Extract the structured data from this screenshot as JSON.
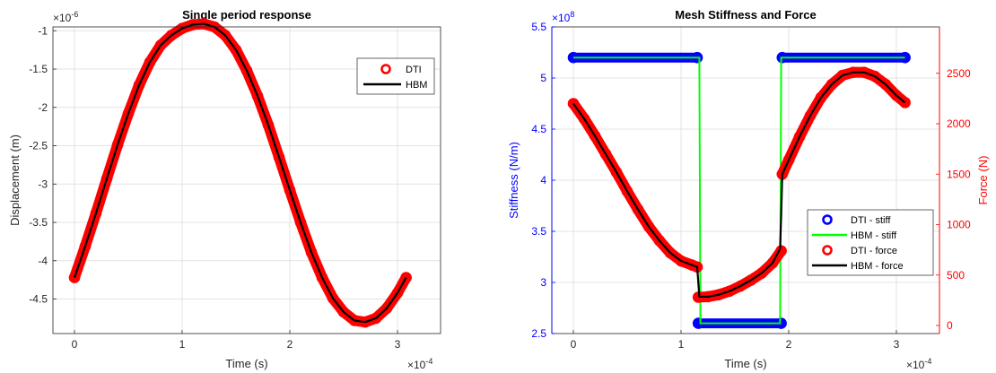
{
  "chart_data": [
    {
      "type": "line",
      "title": "Single period response",
      "xlabel": "Time (s)",
      "ylabel": "Displacement (m)",
      "x_multiplier": "×10",
      "x_multiplier_exp": "-4",
      "y_multiplier": "×10",
      "y_multiplier_exp": "-6",
      "xlim": [
        -0.2,
        3.4
      ],
      "ylim": [
        -4.95,
        -0.95
      ],
      "xticks": [
        0,
        1,
        2,
        3
      ],
      "xtick_labels": [
        "0",
        "1",
        "2",
        "3"
      ],
      "yticks": [
        -1,
        -1.5,
        -2,
        -2.5,
        -3,
        -3.5,
        -4,
        -4.5
      ],
      "ytick_labels": [
        "-1",
        "-1.5",
        "-2",
        "-2.5",
        "-3",
        "-3.5",
        "-4",
        "-4.5"
      ],
      "grid": true,
      "legend_position": "top-right",
      "series": [
        {
          "name": "DTI",
          "style": "markers",
          "color": "#ff0000",
          "x": [
            0,
            0.1,
            0.2,
            0.3,
            0.4,
            0.5,
            0.6,
            0.7,
            0.8,
            0.9,
            1.0,
            1.1,
            1.2,
            1.3,
            1.4,
            1.5,
            1.6,
            1.7,
            1.8,
            1.9,
            2.0,
            2.1,
            2.2,
            2.3,
            2.4,
            2.5,
            2.6,
            2.7,
            2.8,
            2.9,
            3.0,
            3.08
          ],
          "y": [
            -4.22,
            -3.81,
            -3.38,
            -2.93,
            -2.49,
            -2.08,
            -1.71,
            -1.41,
            -1.19,
            -1.06,
            -0.97,
            -0.92,
            -0.91,
            -0.95,
            -1.06,
            -1.25,
            -1.52,
            -1.85,
            -2.23,
            -2.65,
            -3.08,
            -3.5,
            -3.89,
            -4.22,
            -4.49,
            -4.67,
            -4.78,
            -4.8,
            -4.75,
            -4.62,
            -4.42,
            -4.22
          ]
        },
        {
          "name": "HBM",
          "style": "line",
          "color": "#000000",
          "x": [
            0,
            0.1,
            0.2,
            0.3,
            0.4,
            0.5,
            0.6,
            0.7,
            0.8,
            0.9,
            1.0,
            1.1,
            1.2,
            1.3,
            1.4,
            1.5,
            1.6,
            1.7,
            1.8,
            1.9,
            2.0,
            2.1,
            2.2,
            2.3,
            2.4,
            2.5,
            2.6,
            2.7,
            2.8,
            2.9,
            3.0,
            3.08
          ],
          "y": [
            -4.22,
            -3.81,
            -3.38,
            -2.93,
            -2.49,
            -2.08,
            -1.71,
            -1.41,
            -1.19,
            -1.06,
            -0.97,
            -0.92,
            -0.91,
            -0.95,
            -1.06,
            -1.25,
            -1.52,
            -1.85,
            -2.23,
            -2.65,
            -3.08,
            -3.5,
            -3.89,
            -4.22,
            -4.49,
            -4.67,
            -4.78,
            -4.8,
            -4.75,
            -4.62,
            -4.42,
            -4.22
          ]
        }
      ]
    },
    {
      "type": "line",
      "title": "Mesh Stiffness and Force",
      "xlabel": "Time (s)",
      "ylabel_left": "Stiffness (N/m)",
      "ylabel_right": "Force (N)",
      "x_multiplier": "×10",
      "x_multiplier_exp": "-4",
      "y_multiplier": "×10",
      "y_multiplier_exp": "8",
      "left_axis_color": "#0000ff",
      "right_axis_color": "#ff0000",
      "xlim": [
        -0.2,
        3.4
      ],
      "ylim_left": [
        2.5,
        5.5
      ],
      "ylim_right": [
        -80,
        2960
      ],
      "xticks": [
        0,
        1,
        2,
        3
      ],
      "xtick_labels": [
        "0",
        "1",
        "2",
        "3"
      ],
      "yticks_left": [
        2.5,
        3,
        3.5,
        4,
        4.5,
        5,
        5.5
      ],
      "ytick_labels_left": [
        "2.5",
        "3",
        "3.5",
        "4",
        "4.5",
        "5",
        "5.5"
      ],
      "yticks_right": [
        0,
        500,
        1000,
        1500,
        2000,
        2500
      ],
      "ytick_labels_right": [
        "0",
        "500",
        "1000",
        "1500",
        "2000",
        "2500"
      ],
      "grid": true,
      "legend_position": "bottom-right",
      "series": [
        {
          "name": "DTI - stiff",
          "axis": "left",
          "style": "markers",
          "color": "#0000ff",
          "x": [
            0,
            1.15,
            1.16,
            1.93,
            1.94,
            3.08
          ],
          "y": [
            5.2,
            5.2,
            2.6,
            2.6,
            5.2,
            5.2
          ]
        },
        {
          "name": "HBM - stiff",
          "axis": "left",
          "style": "line",
          "color": "#00ff00",
          "x": [
            0,
            1.17,
            1.18,
            1.92,
            1.93,
            3.08
          ],
          "y": [
            5.2,
            5.2,
            2.6,
            2.6,
            5.2,
            5.2
          ]
        },
        {
          "name": "DTI - force",
          "axis": "right",
          "style": "markers",
          "color": "#ff0000",
          "x": [
            0,
            0.1,
            0.2,
            0.3,
            0.4,
            0.5,
            0.6,
            0.7,
            0.8,
            0.9,
            1.0,
            1.1,
            1.15,
            1.16,
            1.25,
            1.35,
            1.45,
            1.55,
            1.65,
            1.75,
            1.85,
            1.93,
            1.94,
            2.0,
            2.1,
            2.2,
            2.3,
            2.4,
            2.5,
            2.6,
            2.7,
            2.8,
            2.9,
            3.0,
            3.08
          ],
          "y": [
            2200,
            2050,
            1880,
            1700,
            1520,
            1330,
            1150,
            980,
            840,
            720,
            640,
            600,
            580,
            280,
            285,
            305,
            340,
            390,
            450,
            520,
            620,
            740,
            1500,
            1640,
            1870,
            2080,
            2260,
            2390,
            2480,
            2510,
            2510,
            2470,
            2390,
            2280,
            2210
          ]
        },
        {
          "name": "HBM - force",
          "axis": "right",
          "style": "line",
          "color": "#000000",
          "x": [
            0,
            0.1,
            0.2,
            0.3,
            0.4,
            0.5,
            0.6,
            0.7,
            0.8,
            0.9,
            1.0,
            1.1,
            1.15,
            1.17,
            1.25,
            1.35,
            1.45,
            1.55,
            1.65,
            1.75,
            1.85,
            1.92,
            1.93,
            1.94,
            2.0,
            2.1,
            2.2,
            2.3,
            2.4,
            2.5,
            2.6,
            2.7,
            2.8,
            2.9,
            3.0,
            3.08
          ],
          "y": [
            2200,
            2050,
            1880,
            1700,
            1520,
            1330,
            1150,
            980,
            840,
            720,
            640,
            600,
            580,
            285,
            285,
            305,
            340,
            390,
            450,
            520,
            620,
            760,
            1100,
            1500,
            1640,
            1870,
            2080,
            2260,
            2390,
            2480,
            2510,
            2510,
            2470,
            2390,
            2280,
            2210
          ]
        }
      ]
    }
  ]
}
